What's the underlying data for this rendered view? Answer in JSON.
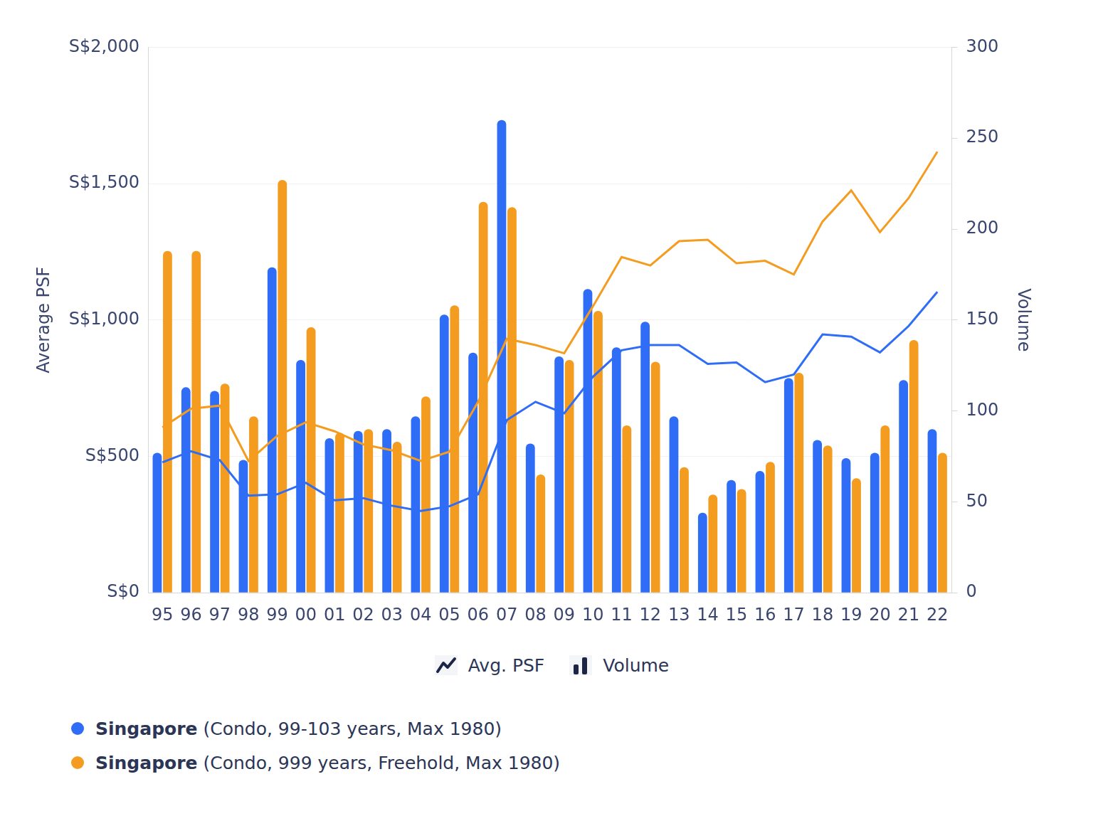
{
  "chart_data": {
    "type": "bar",
    "categories": [
      "95",
      "96",
      "97",
      "98",
      "99",
      "00",
      "01",
      "02",
      "03",
      "04",
      "05",
      "06",
      "07",
      "08",
      "09",
      "10",
      "11",
      "12",
      "13",
      "14",
      "15",
      "16",
      "17",
      "18",
      "19",
      "20",
      "21",
      "22"
    ],
    "y_label": "Average PSF",
    "y2_label": "Volume",
    "ylim": [
      0,
      2000
    ],
    "yticks": [
      {
        "value": 0,
        "label": "S$0"
      },
      {
        "value": 500,
        "label": "S$500"
      },
      {
        "value": 1000,
        "label": "S$1,000"
      },
      {
        "value": 1500,
        "label": "S$1,500"
      },
      {
        "value": 2000,
        "label": "S$2,000"
      }
    ],
    "y2lim": [
      0,
      300
    ],
    "y2ticks": [
      0,
      50,
      100,
      150,
      200,
      250,
      300
    ],
    "grid": true,
    "marks_legend": [
      {
        "type": "line",
        "label": "Avg. PSF"
      },
      {
        "type": "bar",
        "label": "Volume"
      }
    ],
    "series": [
      {
        "name": "Singapore (Condo, 99-103 years, Max 1980)",
        "type": "bar",
        "axis": "y2",
        "color": "#2f6df6",
        "values": [
          77,
          113,
          111,
          73,
          179,
          128,
          85,
          89,
          90,
          97,
          153,
          132,
          260,
          82,
          130,
          167,
          135,
          149,
          97,
          44,
          62,
          67,
          118,
          84,
          74,
          77,
          117,
          90
        ]
      },
      {
        "name": "Singapore (Condo, 999 years, Freehold, Max 1980)",
        "type": "bar",
        "axis": "y2",
        "color": "#f49c1f",
        "values": [
          188,
          188,
          115,
          97,
          227,
          146,
          88,
          90,
          83,
          108,
          158,
          215,
          212,
          65,
          128,
          155,
          92,
          127,
          69,
          54,
          57,
          72,
          121,
          81,
          63,
          92,
          139,
          77
        ]
      },
      {
        "name": "Singapore (Condo, 99-103 years, Max 1980)",
        "type": "line",
        "color": "#2f6df6",
        "values": [
          478,
          519,
          486,
          356,
          361,
          403,
          339,
          347,
          319,
          300,
          317,
          361,
          633,
          700,
          658,
          792,
          889,
          908,
          908,
          839,
          844,
          772,
          800,
          947,
          939,
          881,
          978,
          1103
        ]
      },
      {
        "name": "Singapore (Condo, 999 years, Freehold, Max 1980)",
        "type": "line",
        "color": "#f49c1f",
        "values": [
          606,
          675,
          686,
          483,
          575,
          625,
          592,
          544,
          522,
          483,
          517,
          700,
          931,
          908,
          878,
          1050,
          1231,
          1200,
          1289,
          1294,
          1208,
          1217,
          1167,
          1361,
          1475,
          1322,
          1447,
          1617
        ]
      }
    ]
  }
}
